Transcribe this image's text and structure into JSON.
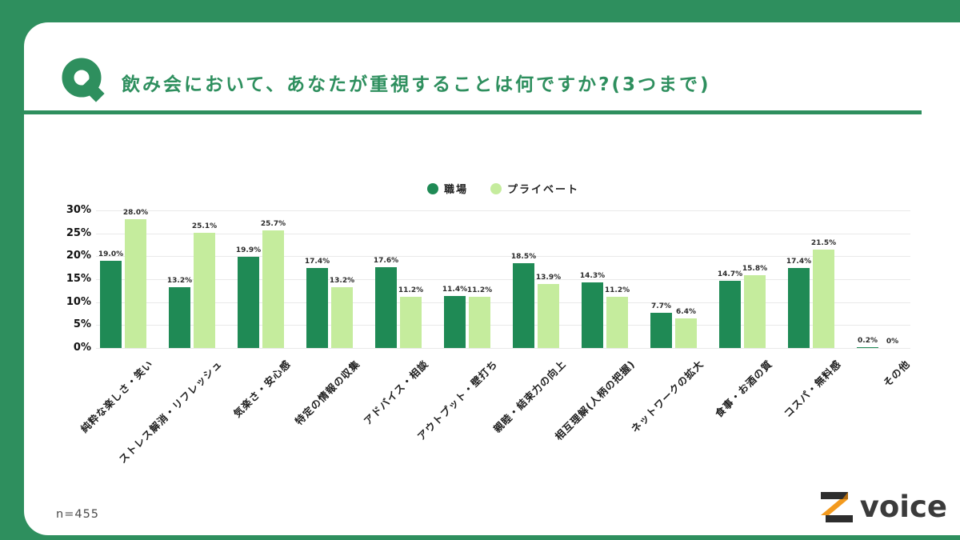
{
  "page": {
    "background_color": "#2e8f5e",
    "card_color": "#ffffff"
  },
  "header": {
    "q_icon": "q-mark-icon",
    "title": "飲み会において、あなたが重視することは何ですか?(3つまで)",
    "accent_color": "#2e8f5e"
  },
  "legend": {
    "items": [
      {
        "label": "職場",
        "color": "#1f8a55"
      },
      {
        "label": "プライベート",
        "color": "#c5ec9d"
      }
    ]
  },
  "footer": {
    "sample_size": "n=455",
    "logo_icon": "z-logo-icon",
    "logo_text": "voice",
    "logo_accent_color": "#f39a1e"
  },
  "chart_data": {
    "type": "bar",
    "title": "飲み会において、あなたが重視することは何ですか?(3つまで)",
    "xlabel": "",
    "ylabel": "",
    "ylim": [
      0,
      30
    ],
    "yticks": [
      "0%",
      "5%",
      "10%",
      "15%",
      "20%",
      "25%",
      "30%"
    ],
    "grid": true,
    "legend_position": "top-center",
    "categories": [
      "純粋な楽しさ・笑い",
      "ストレス解消・リフレッシュ",
      "気楽さ・安心感",
      "特定の情報の収集",
      "アドバイス・相談",
      "アウトプット・壁打ち",
      "親睦・結束力の向上",
      "相互理解(人柄の把握)",
      "ネットワークの拡大",
      "食事・お酒の質",
      "コスパ・無料感",
      "その他"
    ],
    "series": [
      {
        "name": "職場",
        "color": "#1f8a55",
        "values": [
          19.0,
          13.2,
          19.9,
          17.4,
          17.6,
          11.4,
          18.5,
          14.3,
          7.7,
          14.7,
          17.4,
          0.2
        ],
        "labels": [
          "19.0%",
          "13.2%",
          "19.9%",
          "17.4%",
          "17.6%",
          "11.4%",
          "18.5%",
          "14.3%",
          "7.7%",
          "14.7%",
          "17.4%",
          "0.2%"
        ]
      },
      {
        "name": "プライベート",
        "color": "#c5ec9d",
        "values": [
          28.0,
          25.1,
          25.7,
          13.2,
          11.2,
          11.2,
          13.9,
          11.2,
          6.4,
          15.8,
          21.5,
          0
        ],
        "labels": [
          "28.0%",
          "25.1%",
          "25.7%",
          "13.2%",
          "11.2%",
          "11.2%",
          "13.9%",
          "11.2%",
          "6.4%",
          "15.8%",
          "21.5%",
          "0%"
        ]
      }
    ]
  }
}
